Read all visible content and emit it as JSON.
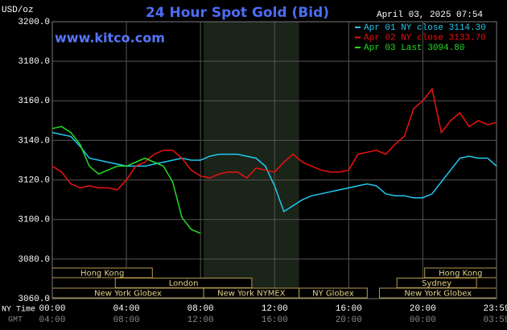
{
  "chart_data": {
    "type": "line",
    "title": "24 Hour Spot Gold (Bid)",
    "site": "www.kitco.com",
    "timestamp": "April 03, 2025 07:54",
    "y_label": "USD/oz",
    "x_label": "NY Time",
    "x2_label": "GMT",
    "xlim": [
      0,
      23.98
    ],
    "ylim": [
      3060,
      3200
    ],
    "grid": true,
    "xticks": [
      {
        "value": 0,
        "label": "00:00"
      },
      {
        "value": 4,
        "label": "04:00"
      },
      {
        "value": 8,
        "label": "08:00"
      },
      {
        "value": 12,
        "label": "12:00"
      },
      {
        "value": 16,
        "label": "16:00"
      },
      {
        "value": 20,
        "label": "20:00"
      },
      {
        "value": 23.98,
        "label": "23:59"
      }
    ],
    "x2ticks": [
      {
        "value": 0,
        "label": "04:00"
      },
      {
        "value": 4,
        "label": "08:00"
      },
      {
        "value": 8,
        "label": "12:00"
      },
      {
        "value": 12,
        "label": "16:00"
      },
      {
        "value": 16,
        "label": "20:00"
      },
      {
        "value": 20,
        "label": "00:00"
      },
      {
        "value": 23.98,
        "label": "03:59"
      }
    ],
    "yticks": [
      {
        "value": 3060,
        "label": "3060.0"
      },
      {
        "value": 3080,
        "label": "3080.0"
      },
      {
        "value": 3100,
        "label": "3100.0"
      },
      {
        "value": 3120,
        "label": "3120.0"
      },
      {
        "value": 3140,
        "label": "3140.0"
      },
      {
        "value": 3160,
        "label": "3160.0"
      },
      {
        "value": 3180,
        "label": "3180.0"
      },
      {
        "value": 3200,
        "label": "3200.0"
      }
    ],
    "shaded": [
      8.17,
      13.32
    ],
    "sessions": [
      [
        {
          "name": "Hong Kong",
          "start": 0,
          "end": 5.4
        },
        {
          "name": "Hong Kong",
          "start": 20.1,
          "end": 23.98
        }
      ],
      [
        {
          "name": "London",
          "start": 3.4,
          "end": 10.77
        },
        {
          "name": "Sydney",
          "start": 18.6,
          "end": 22.9
        }
      ],
      [
        {
          "name": "New York Globex",
          "start": 0,
          "end": 8.17
        },
        {
          "name": "New York NYMEX",
          "start": 8.17,
          "end": 13.32
        },
        {
          "name": "NY Globex",
          "start": 13.32,
          "end": 17
        },
        {
          "name": "New York Globex",
          "start": 17.66,
          "end": 23.98
        }
      ]
    ],
    "x": [
      0,
      0.5,
      1,
      1.5,
      2,
      2.5,
      3,
      3.5,
      4,
      4.5,
      5,
      5.5,
      6,
      6.5,
      7,
      7.5,
      8,
      8.5,
      9,
      9.5,
      10,
      10.5,
      11,
      11.5,
      12,
      12.5,
      13,
      13.5,
      14,
      14.5,
      15,
      15.5,
      16,
      16.5,
      17,
      17.5,
      18,
      18.5,
      19,
      19.5,
      20,
      20.5,
      21,
      21.5,
      22,
      22.5,
      23,
      23.5,
      23.98
    ],
    "series": [
      {
        "name": "Apr 01 NY close 3114.30",
        "color": "#22c8f0",
        "values": [
          3144,
          3143,
          3142,
          3137,
          3131,
          3130,
          3129,
          3128,
          3127,
          3127,
          3127,
          3128,
          3129,
          3130,
          3131,
          3130,
          3130,
          3132,
          3133,
          3133,
          3133,
          3132,
          3131,
          3127,
          3117,
          3104,
          3107,
          3110,
          3112,
          3113,
          3114,
          3115,
          3116,
          3117,
          3118,
          3117,
          3113,
          3112,
          3112,
          3111,
          3111,
          3113,
          3119,
          3125,
          3131,
          3132,
          3131,
          3131,
          3127
        ]
      },
      {
        "name": "Apr 02 NY close 3133.70",
        "color": "#ee1111",
        "values": [
          3127,
          3124,
          3118,
          3116,
          3117,
          3116,
          3116,
          3115,
          3120,
          3127,
          3129,
          3133,
          3135,
          3135,
          3131,
          3125,
          3122,
          3121,
          3123,
          3124,
          3124,
          3121,
          3126,
          3125,
          3124,
          3129,
          3133,
          3129,
          3127,
          3125,
          3124,
          3124,
          3125,
          3133,
          3134,
          3135,
          3133,
          3138,
          3142,
          3156,
          3160,
          3166,
          3144,
          3150,
          3154,
          3147,
          3150,
          3148,
          3149
        ]
      },
      {
        "name": "Apr 03 Last 3094.80",
        "color": "#22dd22",
        "values": [
          3146,
          3147,
          3144,
          3138,
          3127,
          3123,
          3125,
          3127,
          3127,
          3129,
          3131,
          3129,
          3127,
          3119,
          3101,
          3095,
          3093,
          null,
          null,
          null,
          null,
          null,
          null,
          null,
          null,
          null,
          null,
          null,
          null,
          null,
          null,
          null,
          null,
          null,
          null,
          null,
          null,
          null,
          null,
          null,
          null,
          null,
          null,
          null,
          null,
          null,
          null,
          null,
          null
        ]
      }
    ]
  }
}
